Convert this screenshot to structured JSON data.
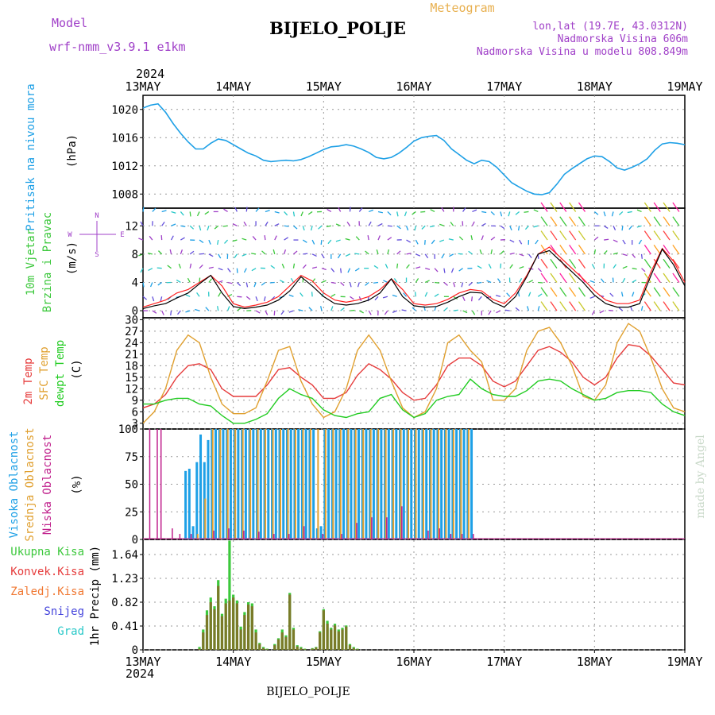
{
  "header": {
    "model_label": "Model",
    "model_name": "wrf-nmm_v3.9.1 e1km",
    "station": "BIJELO_POLJE",
    "meteogram": "Meteogram",
    "lonlat": "lon,lat (19.7E, 43.0312N)",
    "elevation": "Nadmorska Visina 606m",
    "model_elevation": "Nadmorska Visina u modelu 808.849m",
    "credit": "made by Angel",
    "footer_station": "BIJELO_POLJE"
  },
  "time_axis": {
    "year": "2024",
    "days": [
      "13MAY",
      "14MAY",
      "15MAY",
      "16MAY",
      "17MAY",
      "18MAY",
      "19MAY"
    ]
  },
  "colors": {
    "pressure": "#1ea0e6",
    "temp2m": "#e63c3c",
    "sfctemp": "#e0a030",
    "dewpoint": "#22cc22",
    "high_cloud": "#1ea0e6",
    "mid_cloud": "#e0a030",
    "low_cloud": "#c0208c",
    "total_precip": "#3cc83c",
    "conv_precip": "#e63c3c",
    "frz_precip": "#f07832",
    "snow": "#4646dc",
    "graupel": "#28c8c8",
    "gust": "#ff2020",
    "wind_speed": "#000000"
  },
  "panels": {
    "pressure": {
      "ylabel1": "Pritisak na nivou mora",
      "ylabel2": "(hPa)"
    },
    "wind": {
      "ylabel1": "10m Vjetar",
      "ylabel2": "Brzina i Pravac",
      "ylabel3": "(m/s)",
      "compass_n": "N",
      "compass_s": "S",
      "compass_e": "E",
      "compass_w": "W"
    },
    "temp": {
      "ylabel1": "2m Temp",
      "ylabel2": "SFC Temp",
      "ylabel3": "dewpt Temp",
      "ylabel4": "(C)"
    },
    "cloud": {
      "ylabel1": "Visoka Oblacnost",
      "ylabel2": "Srednja Oblacnost",
      "ylabel3": "Niska Oblacnost",
      "ylabel4": "(%)"
    },
    "precip": {
      "legend": [
        "Ukupna Kisa",
        "Konvek.Kisa",
        "Zaledj.Kisa",
        "Snijeg",
        "Grad"
      ],
      "ylabel": "1hr Precip (mm)"
    }
  },
  "chart_data": [
    {
      "type": "line",
      "panel": "pressure",
      "ylabel": "(hPa)",
      "ylim": [
        1006,
        1022
      ],
      "yticks": [
        1008,
        1012,
        1016,
        1020
      ],
      "x_unit": "hours since 13MAY 00",
      "x": [
        0,
        2,
        4,
        6,
        8,
        10,
        12,
        14,
        16,
        18,
        20,
        22,
        24,
        26,
        28,
        30,
        32,
        34,
        36,
        38,
        40,
        42,
        44,
        46,
        48,
        50,
        52,
        54,
        56,
        58,
        60,
        62,
        64,
        66,
        68,
        70,
        72,
        74,
        76,
        78,
        80,
        82,
        84,
        86,
        88,
        90,
        92,
        94,
        96,
        98,
        100,
        102,
        104,
        106,
        108,
        110,
        112,
        114,
        116,
        118,
        120,
        122,
        124,
        126,
        128,
        130,
        132,
        134,
        136,
        138,
        140,
        142,
        144
      ],
      "series": [
        {
          "values": [
            1020.2,
            1020.6,
            1020.8,
            1019.6,
            1018.0,
            1016.6,
            1015.4,
            1014.4,
            1014.4,
            1015.2,
            1015.8,
            1015.6,
            1015.0,
            1014.4,
            1013.8,
            1013.4,
            1012.8,
            1012.6,
            1012.7,
            1012.8,
            1012.7,
            1012.9,
            1013.3,
            1013.8,
            1014.3,
            1014.7,
            1014.8,
            1015.0,
            1014.8,
            1014.4,
            1013.9,
            1013.2,
            1013.0,
            1013.2,
            1013.8,
            1014.6,
            1015.5,
            1016.0,
            1016.2,
            1016.3,
            1015.6,
            1014.4,
            1013.6,
            1012.8,
            1012.3,
            1012.8,
            1012.6,
            1011.8,
            1010.7,
            1009.6,
            1009.0,
            1008.4,
            1008.0,
            1007.9,
            1008.2,
            1009.4,
            1010.8,
            1011.6,
            1012.3,
            1013.0,
            1013.4,
            1013.3,
            1012.6,
            1011.7,
            1011.4,
            1011.8,
            1012.3,
            1013.0,
            1014.2,
            1015.1,
            1015.3,
            1015.2,
            1015.0
          ]
        }
      ]
    },
    {
      "type": "line",
      "panel": "wind",
      "ylabel": "(m/s)",
      "ylim": [
        -1,
        14.5
      ],
      "yticks": [
        0,
        4,
        8,
        12
      ],
      "x_unit": "hours since 13MAY 00",
      "x": [
        0,
        3,
        6,
        9,
        12,
        15,
        18,
        21,
        24,
        27,
        30,
        33,
        36,
        39,
        42,
        45,
        48,
        51,
        54,
        57,
        60,
        63,
        66,
        69,
        72,
        75,
        78,
        81,
        84,
        87,
        90,
        93,
        96,
        99,
        102,
        105,
        108,
        111,
        114,
        117,
        120,
        123,
        126,
        129,
        132,
        135,
        138,
        141,
        144
      ],
      "series": [
        {
          "values": [
            0.5,
            1.0,
            1.5,
            2.5,
            3.0,
            4.0,
            5.0,
            3.5,
            1.0,
            0.5,
            0.8,
            1.2,
            2.0,
            3.5,
            5.0,
            4.2,
            2.5,
            1.5,
            1.2,
            1.5,
            2.0,
            3.0,
            4.5,
            3.0,
            1.0,
            0.8,
            1.0,
            1.6,
            2.5,
            3.0,
            2.8,
            1.6,
            1.0,
            2.5,
            5.0,
            8.0,
            9.0,
            7.5,
            6.0,
            4.5,
            2.8,
            1.5,
            1.0,
            1.0,
            1.5,
            5.5,
            8.8,
            7.0,
            4.0
          ]
        },
        {
          "values": [
            0.3,
            0.7,
            1.0,
            1.8,
            2.5,
            3.8,
            5.0,
            2.5,
            0.6,
            0.3,
            0.5,
            0.8,
            1.5,
            2.8,
            4.8,
            3.5,
            2.0,
            1.0,
            0.8,
            1.0,
            1.5,
            2.5,
            4.5,
            2.0,
            0.7,
            0.5,
            0.6,
            1.2,
            2.0,
            2.6,
            2.5,
            1.2,
            0.5,
            2.0,
            4.8,
            8.0,
            8.5,
            7.0,
            5.5,
            4.0,
            2.2,
            1.0,
            0.5,
            0.5,
            1.0,
            5.0,
            8.7,
            6.5,
            3.5
          ]
        }
      ]
    },
    {
      "type": "line",
      "panel": "temp",
      "ylabel": "(C)",
      "ylim": [
        1.5,
        30.5
      ],
      "yticks": [
        3,
        6,
        9,
        12,
        15,
        18,
        21,
        24,
        27,
        30
      ],
      "x_unit": "hours since 13MAY 00",
      "x": [
        0,
        3,
        6,
        9,
        12,
        15,
        18,
        21,
        24,
        27,
        30,
        33,
        36,
        39,
        42,
        45,
        48,
        51,
        54,
        57,
        60,
        63,
        66,
        69,
        72,
        75,
        78,
        81,
        84,
        87,
        90,
        93,
        96,
        99,
        102,
        105,
        108,
        111,
        114,
        117,
        120,
        123,
        126,
        129,
        132,
        135,
        138,
        141,
        144
      ],
      "series": [
        {
          "name": "2m Temp",
          "values": [
            7.0,
            8.0,
            10.5,
            15.0,
            18.0,
            18.5,
            17.0,
            12.0,
            10.0,
            10.0,
            10.0,
            13.0,
            17.0,
            17.5,
            15.0,
            13.0,
            9.5,
            9.5,
            11.0,
            15.5,
            18.5,
            17.0,
            14.5,
            11.0,
            9.0,
            9.5,
            13.0,
            18.0,
            20.0,
            20.0,
            18.0,
            14.0,
            12.5,
            14.0,
            18.0,
            22.0,
            23.0,
            21.5,
            19.0,
            15.0,
            13.0,
            15.0,
            20.0,
            23.5,
            23.0,
            20.5,
            17.0,
            13.5,
            13.0
          ]
        },
        {
          "name": "SFC Temp",
          "values": [
            3.0,
            6.0,
            12.0,
            22.0,
            26.0,
            24.0,
            15.0,
            8.0,
            5.5,
            5.5,
            7.0,
            14.0,
            22.0,
            23.0,
            14.0,
            8.0,
            4.5,
            6.0,
            12.0,
            22.0,
            26.0,
            22.0,
            14.0,
            7.0,
            4.5,
            6.0,
            12.0,
            24.0,
            26.0,
            22.0,
            19.0,
            9.0,
            9.0,
            12.0,
            22.0,
            27.0,
            28.0,
            24.0,
            18.0,
            10.0,
            9.0,
            13.0,
            24.0,
            29.0,
            27.0,
            20.0,
            12.0,
            7.0,
            6.0
          ]
        },
        {
          "name": "dewpt Temp",
          "values": [
            8.0,
            8.0,
            9.0,
            9.5,
            9.5,
            8.0,
            7.5,
            5.0,
            3.0,
            3.0,
            4.0,
            5.5,
            9.5,
            12.0,
            10.5,
            9.5,
            6.5,
            5.0,
            4.5,
            5.5,
            6.0,
            9.5,
            10.5,
            6.5,
            4.5,
            5.5,
            9.0,
            10.0,
            10.5,
            14.5,
            12.0,
            10.5,
            10.0,
            10.0,
            11.5,
            14.0,
            14.5,
            14.0,
            12.0,
            10.5,
            9.0,
            9.5,
            11.0,
            11.5,
            11.5,
            11.0,
            8.0,
            6.0,
            5.0
          ]
        }
      ]
    },
    {
      "type": "bar",
      "panel": "cloud",
      "ylabel": "(%)",
      "ylim": [
        0,
        100
      ],
      "yticks": [
        0,
        25,
        50,
        75,
        100
      ],
      "x_unit": "hours since 13MAY 00",
      "series": [
        {
          "name": "Visoka Oblacnost",
          "x": [
            11,
            12,
            13,
            14,
            15,
            16,
            17,
            18,
            19,
            20,
            21,
            22,
            23,
            24,
            25,
            26,
            27,
            28,
            29,
            30,
            31,
            32,
            33,
            34,
            35,
            36,
            37,
            38,
            39,
            40,
            41,
            42,
            43,
            44,
            45,
            46,
            47,
            48,
            49,
            50,
            51,
            52,
            53,
            54,
            55,
            56,
            57,
            58,
            59,
            60,
            61,
            62,
            63,
            64,
            65,
            66,
            67,
            68,
            69,
            70,
            71,
            72,
            73,
            74,
            75,
            76,
            77,
            78,
            79,
            80,
            81,
            82,
            83,
            84,
            85,
            86,
            87
          ],
          "values": [
            62,
            64,
            12,
            70,
            95,
            70,
            90,
            100,
            100,
            100,
            100,
            100,
            100,
            100,
            100,
            100,
            100,
            100,
            100,
            100,
            100,
            100,
            100,
            100,
            100,
            100,
            100,
            100,
            100,
            100,
            100,
            100,
            100,
            100,
            100,
            10,
            12,
            100,
            100,
            100,
            100,
            100,
            100,
            100,
            100,
            100,
            100,
            100,
            100,
            100,
            100,
            100,
            100,
            100,
            100,
            100,
            100,
            100,
            100,
            100,
            100,
            100,
            100,
            100,
            100,
            100,
            100,
            100,
            100,
            100,
            100,
            100,
            100,
            100,
            100,
            100,
            100
          ]
        },
        {
          "name": "Srednja Oblacnost",
          "x": [
            14,
            16,
            18,
            20,
            22,
            24,
            26,
            28,
            30,
            32,
            34,
            36,
            38,
            40,
            42,
            44,
            46,
            48,
            50,
            52,
            54,
            56,
            58,
            60,
            62,
            64,
            66,
            68,
            70,
            72,
            74,
            76,
            78,
            80,
            82,
            84,
            86
          ],
          "values": [
            5,
            37,
            100,
            100,
            100,
            100,
            100,
            100,
            100,
            100,
            100,
            100,
            100,
            100,
            100,
            100,
            100,
            100,
            100,
            100,
            100,
            100,
            100,
            100,
            100,
            100,
            100,
            100,
            100,
            100,
            100,
            100,
            100,
            100,
            100,
            100,
            100
          ]
        },
        {
          "name": "Niska Oblacnost",
          "x": [
            1,
            3,
            4,
            7,
            9,
            12,
            18,
            22,
            26,
            30,
            34,
            38,
            42,
            47,
            52,
            56,
            60,
            64,
            68,
            75,
            78,
            81,
            84,
            87
          ],
          "values": [
            100,
            100,
            100,
            10,
            5,
            5,
            8,
            10,
            8,
            7,
            5,
            5,
            12,
            5,
            5,
            15,
            20,
            20,
            30,
            8,
            10,
            5,
            5,
            5
          ]
        }
      ]
    },
    {
      "type": "bar",
      "panel": "precip",
      "ylabel": "1hr Precip (mm)",
      "ylim": [
        0,
        1.9
      ],
      "yticks": [
        0,
        0.41,
        0.82,
        1.23,
        1.64
      ],
      "x_unit": "hours since 13MAY 00",
      "x": [
        15,
        16,
        17,
        18,
        19,
        20,
        21,
        22,
        23,
        24,
        25,
        26,
        27,
        28,
        29,
        30,
        31,
        32,
        33,
        34,
        35,
        36,
        37,
        38,
        39,
        40,
        41,
        42,
        43,
        44,
        45,
        46,
        47,
        48,
        49,
        50,
        51,
        52,
        53,
        54,
        55,
        56,
        57,
        58,
        59,
        60,
        61,
        62,
        63,
        64,
        65,
        66,
        67,
        68,
        69,
        70,
        71,
        72,
        73,
        74
      ],
      "series": [
        {
          "name": "Ukupna Kisa",
          "values": [
            0.05,
            0.35,
            0.68,
            0.9,
            0.75,
            1.2,
            0.62,
            0.88,
            1.88,
            0.95,
            0.85,
            0.4,
            0.65,
            0.82,
            0.8,
            0.35,
            0.12,
            0.05,
            0.02,
            0.0,
            0.1,
            0.2,
            0.35,
            0.25,
            0.98,
            0.38,
            0.08,
            0.05,
            0.02,
            0.0,
            0.03,
            0.05,
            0.32,
            0.7,
            0.5,
            0.38,
            0.45,
            0.35,
            0.38,
            0.42,
            0.1,
            0.05,
            0.02,
            0.0,
            0.0,
            0.0,
            0.0,
            0.0,
            0.0,
            0.0,
            0.0,
            0.0,
            0.0,
            0.0,
            0.0,
            0.0,
            0.0,
            0.0,
            0.0,
            0.0
          ]
        },
        {
          "name": "Konvek.Kisa",
          "values": [
            0.02,
            0.3,
            0.6,
            0.82,
            0.7,
            1.1,
            0.58,
            0.8,
            0.85,
            0.9,
            0.8,
            0.35,
            0.6,
            0.78,
            0.75,
            0.3,
            0.1,
            0.03,
            0.01,
            0.0,
            0.08,
            0.18,
            0.3,
            0.22,
            0.95,
            0.35,
            0.06,
            0.03,
            0.01,
            0.0,
            0.02,
            0.04,
            0.3,
            0.68,
            0.45,
            0.35,
            0.42,
            0.32,
            0.35,
            0.4,
            0.08,
            0.03,
            0.01,
            0.0,
            0.0,
            0.0,
            0.0,
            0.0,
            0.0,
            0.0,
            0.0,
            0.0,
            0.0,
            0.0,
            0.0,
            0.0,
            0.0,
            0.0,
            0.0,
            0.0
          ]
        }
      ]
    }
  ]
}
